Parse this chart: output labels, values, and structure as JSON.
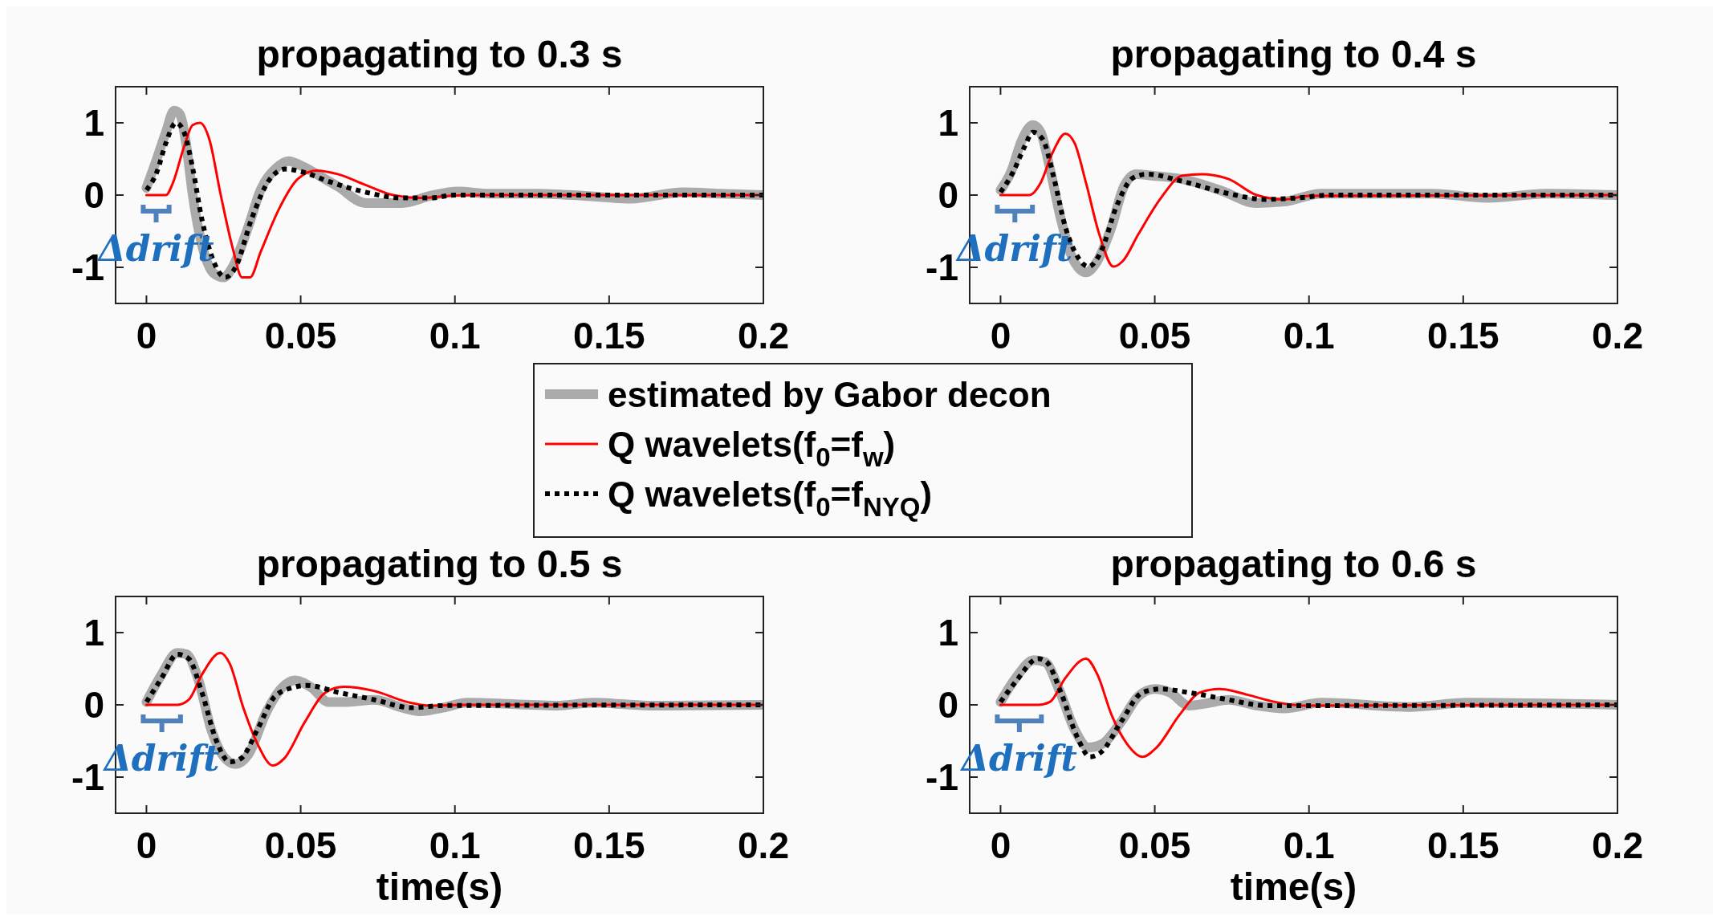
{
  "chart_data": [
    {
      "type": "line",
      "title": "propagating to 0.3 s",
      "xlim": [
        -0.01,
        0.2
      ],
      "ylim": [
        -1.5,
        1.5
      ],
      "xticks": [
        0,
        0.05,
        0.1,
        0.15,
        0.2
      ],
      "yticks": [
        -1,
        0,
        1
      ],
      "legend": "bottom",
      "annotations": [
        "Δdrift"
      ],
      "series": [
        {
          "name": "estimated by Gabor decon",
          "color": "#aaaaaa",
          "x": [
            0,
            0.0027,
            0.0063,
            0.009,
            0.0108,
            0.013,
            0.015,
            0.018,
            0.022,
            0.025,
            0.028,
            0.033,
            0.037,
            0.042,
            0.046,
            0.051,
            0.056,
            0.062,
            0.071,
            0.083,
            0.092,
            0.101,
            0.111,
            0.126,
            0.142,
            0.157,
            0.174,
            0.186,
            0.2
          ],
          "values": [
            0.1,
            0.42,
            0.87,
            1.17,
            1.12,
            0.67,
            0.0,
            -0.69,
            -1.09,
            -1.14,
            -0.99,
            -0.44,
            0.07,
            0.37,
            0.47,
            0.39,
            0.27,
            0.12,
            -0.11,
            -0.11,
            -0.01,
            0.05,
            0.02,
            0.02,
            -0.01,
            -0.05,
            0.04,
            0.02,
            0
          ]
        },
        {
          "name": "Q wavelets(f$_{0}$=f$_{w}$)",
          "color": "#ff0000",
          "x": [
            0,
            0.0063,
            0.0086,
            0.0122,
            0.015,
            0.0174,
            0.0204,
            0.024,
            0.028,
            0.031,
            0.0336,
            0.037,
            0.043,
            0.049,
            0.055,
            0.062,
            0.071,
            0.08,
            0.089,
            0.098,
            0.107,
            0.2
          ],
          "values": [
            0,
            0,
            0.17,
            0.67,
            0.97,
            1.0,
            0.77,
            0.02,
            -0.74,
            -1.14,
            -1.14,
            -0.79,
            -0.19,
            0.22,
            0.34,
            0.29,
            0.14,
            0,
            -0.04,
            -0.01,
            0,
            0
          ]
        },
        {
          "name": "Q wavelets(f$_{0}$=f$_{NYQ}$)",
          "color": "#000000",
          "line_style": "dotted",
          "x": [
            0,
            0.0034,
            0.0063,
            0.0096,
            0.0122,
            0.015,
            0.018,
            0.022,
            0.0255,
            0.029,
            0.034,
            0.04,
            0.045,
            0.0506,
            0.059,
            0.071,
            0.083,
            0.092,
            0.1,
            0.2
          ],
          "values": [
            0.07,
            0.32,
            0.72,
            1.0,
            0.87,
            0.37,
            -0.34,
            -0.94,
            -1.14,
            -0.99,
            -0.34,
            0.22,
            0.36,
            0.32,
            0.19,
            0.04,
            -0.04,
            -0.04,
            0,
            0
          ]
        }
      ]
    },
    {
      "type": "line",
      "title": "propagating to 0.4 s",
      "xlim": [
        -0.01,
        0.2
      ],
      "ylim": [
        -1.5,
        1.5
      ],
      "xticks": [
        0,
        0.05,
        0.1,
        0.15,
        0.2
      ],
      "yticks": [
        -1,
        0,
        1
      ],
      "annotations": [
        "Δdrift"
      ],
      "series": [
        {
          "color": "#aaaaaa",
          "x": [
            0,
            0.0034,
            0.007,
            0.0105,
            0.013,
            0.016,
            0.0196,
            0.023,
            0.0277,
            0.031,
            0.036,
            0.04,
            0.044,
            0.049,
            0.059,
            0.071,
            0.083,
            0.092,
            0.104,
            0.118,
            0.14,
            0.158,
            0.177,
            0.2
          ],
          "values": [
            0.07,
            0.32,
            0.77,
            0.97,
            0.87,
            0.37,
            -0.34,
            -0.84,
            -1.07,
            -0.94,
            -0.44,
            0.12,
            0.29,
            0.27,
            0.22,
            0.07,
            -0.11,
            -0.09,
            0.02,
            0.02,
            0.02,
            -0.04,
            0.02,
            0
          ]
        },
        {
          "color": "#ff0000",
          "x": [
            0,
            0.0093,
            0.013,
            0.0167,
            0.021,
            0.024,
            0.0277,
            0.032,
            0.0366,
            0.0395,
            0.0447,
            0.052,
            0.059,
            0.0653,
            0.074,
            0.083,
            0.092,
            0.1,
            0.2
          ],
          "values": [
            0,
            0,
            0.17,
            0.57,
            0.85,
            0.72,
            0.17,
            -0.54,
            -0.99,
            -0.92,
            -0.54,
            -0.04,
            0.27,
            0.29,
            0.22,
            0,
            -0.06,
            -0.01,
            0
          ]
        },
        {
          "color": "#000000",
          "line_style": "dotted",
          "x": [
            0,
            0.0041,
            0.0078,
            0.0105,
            0.0137,
            0.0174,
            0.021,
            0.0248,
            0.0285,
            0.033,
            0.0373,
            0.043,
            0.0476,
            0.059,
            0.074,
            0.086,
            0.096,
            0.107,
            0.2
          ],
          "values": [
            0.04,
            0.32,
            0.67,
            0.87,
            0.77,
            0.22,
            -0.44,
            -0.84,
            -0.99,
            -0.74,
            -0.19,
            0.24,
            0.29,
            0.19,
            0.02,
            -0.06,
            -0.04,
            0,
            0
          ]
        }
      ]
    },
    {
      "type": "line",
      "title": "propagating to 0.5 s",
      "xlabel": "time(s)",
      "xlim": [
        -0.01,
        0.2
      ],
      "ylim": [
        -1.5,
        1.5
      ],
      "xticks": [
        0,
        0.05,
        0.1,
        0.15,
        0.2
      ],
      "yticks": [
        -1,
        0,
        1
      ],
      "annotations": [
        "Δdrift"
      ],
      "series": [
        {
          "color": "#aaaaaa",
          "x": [
            0,
            0.0049,
            0.01,
            0.013,
            0.0167,
            0.021,
            0.0255,
            0.029,
            0.033,
            0.039,
            0.044,
            0.048,
            0.0535,
            0.059,
            0.065,
            0.074,
            0.083,
            0.089,
            0.096,
            0.104,
            0.133,
            0.145,
            0.163,
            0.2
          ],
          "values": [
            0.04,
            0.42,
            0.72,
            0.7,
            0.37,
            -0.34,
            -0.74,
            -0.82,
            -0.69,
            -0.09,
            0.24,
            0.34,
            0.24,
            0.04,
            0.04,
            0.07,
            -0.04,
            -0.09,
            -0.04,
            0.03,
            -0.01,
            0.03,
            -0.01,
            0
          ]
        },
        {
          "color": "#ff0000",
          "x": [
            0,
            0.01,
            0.0137,
            0.018,
            0.024,
            0.027,
            0.0314,
            0.036,
            0.041,
            0.0447,
            0.0513,
            0.058,
            0.0639,
            0.074,
            0.0845,
            0.092,
            0.104,
            0.2
          ],
          "values": [
            0,
            0,
            0.07,
            0.42,
            0.72,
            0.57,
            -0.04,
            -0.54,
            -0.84,
            -0.74,
            -0.24,
            0.17,
            0.25,
            0.19,
            0.04,
            -0.01,
            0,
            0
          ]
        },
        {
          "color": "#000000",
          "line_style": "dotted",
          "x": [
            0,
            0.0049,
            0.01,
            0.0137,
            0.018,
            0.0226,
            0.027,
            0.0307,
            0.036,
            0.0417,
            0.0476,
            0.052,
            0.0624,
            0.074,
            0.086,
            0.096,
            0.2
          ],
          "values": [
            0.04,
            0.37,
            0.7,
            0.64,
            0.17,
            -0.49,
            -0.79,
            -0.74,
            -0.34,
            0.12,
            0.24,
            0.27,
            0.17,
            0.07,
            -0.04,
            -0.01,
            0
          ]
        }
      ]
    },
    {
      "type": "line",
      "title": "propagating to 0.6 s",
      "xlabel": "time(s)",
      "xlim": [
        -0.01,
        0.2
      ],
      "ylim": [
        -1.5,
        1.5
      ],
      "xticks": [
        0,
        0.05,
        0.1,
        0.15,
        0.2
      ],
      "yticks": [
        -1,
        0,
        1
      ],
      "annotations": [
        "Δdrift"
      ],
      "series": [
        {
          "color": "#aaaaaa",
          "x": [
            0,
            0.0049,
            0.0108,
            0.0145,
            0.0189,
            0.024,
            0.0285,
            0.033,
            0.039,
            0.0447,
            0.0499,
            0.055,
            0.061,
            0.0668,
            0.074,
            0.083,
            0.092,
            0.104,
            0.133,
            0.151,
            0.2
          ],
          "values": [
            0.04,
            0.37,
            0.62,
            0.59,
            0.22,
            -0.34,
            -0.59,
            -0.54,
            -0.24,
            0.12,
            0.22,
            0.17,
            -0.01,
            0.02,
            0.07,
            -0.01,
            -0.05,
            0.03,
            -0.03,
            0.03,
            0
          ]
        },
        {
          "color": "#ff0000",
          "x": [
            0,
            0.0122,
            0.016,
            0.021,
            0.0277,
            0.0314,
            0.036,
            0.041,
            0.046,
            0.0506,
            0.058,
            0.0646,
            0.071,
            0.08,
            0.089,
            0.098,
            0.2
          ],
          "values": [
            0,
            0,
            0.04,
            0.37,
            0.64,
            0.42,
            -0.14,
            -0.54,
            -0.72,
            -0.59,
            -0.14,
            0.17,
            0.22,
            0.14,
            0.04,
            -0.01,
            0
          ]
        },
        {
          "color": "#000000",
          "line_style": "dotted",
          "x": [
            0,
            0.0049,
            0.0122,
            0.015,
            0.0196,
            0.0248,
            0.029,
            0.033,
            0.039,
            0.046,
            0.052,
            0.061,
            0.074,
            0.086,
            0.096,
            0.2
          ],
          "values": [
            0.04,
            0.32,
            0.64,
            0.59,
            0.17,
            -0.44,
            -0.72,
            -0.64,
            -0.24,
            0.17,
            0.22,
            0.17,
            0.07,
            -0.01,
            -0.01,
            0
          ]
        }
      ]
    }
  ]
}
